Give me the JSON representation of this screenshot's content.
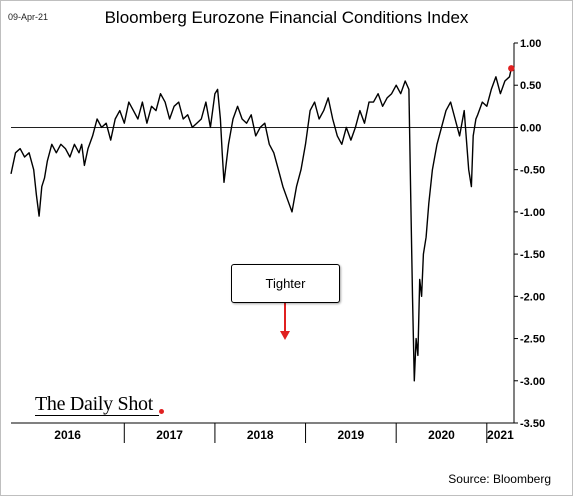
{
  "header": {
    "date": "09-Apr-21"
  },
  "footer": {
    "source": "Source: Bloomberg",
    "logo": "The Daily Shot"
  },
  "colors": {
    "line": "#000000",
    "marker": "#e02020",
    "arrow": "#e02020",
    "grid": "#808080"
  },
  "chart_data": {
    "type": "line",
    "title": "Bloomberg Eurozone Financial Conditions Index",
    "xlabel": "",
    "ylabel": "",
    "ylim": [
      -3.5,
      1.0
    ],
    "yticks": [
      1.0,
      0.5,
      0.0,
      -0.5,
      -1.0,
      -1.5,
      -2.0,
      -2.5,
      -3.0,
      -3.5
    ],
    "ytick_labels": [
      "1.00",
      "0.50",
      "0.00",
      "-0.50",
      "-1.00",
      "-1.50",
      "-2.00",
      "-2.50",
      "-3.00",
      "-3.50"
    ],
    "xlim": [
      2015.75,
      2021.3
    ],
    "x_categories": [
      "2016",
      "2017",
      "2018",
      "2019",
      "2020",
      "2021"
    ],
    "x_category_ranges": [
      [
        2015.75,
        2017.0
      ],
      [
        2017.0,
        2018.0
      ],
      [
        2018.0,
        2019.0
      ],
      [
        2019.0,
        2020.0
      ],
      [
        2020.0,
        2021.0
      ],
      [
        2021.0,
        2021.3
      ]
    ],
    "zero_line": true,
    "grid": false,
    "annotation": {
      "text": "Tighter",
      "arrow": "down"
    },
    "series": [
      {
        "x": [
          2015.75,
          2015.8,
          2015.85,
          2015.9,
          2015.95,
          2016.0,
          2016.03,
          2016.06,
          2016.09,
          2016.12,
          2016.15,
          2016.2,
          2016.25,
          2016.3,
          2016.35,
          2016.4,
          2016.45,
          2016.5,
          2016.53,
          2016.56,
          2016.6,
          2016.65,
          2016.7,
          2016.75,
          2016.8,
          2016.85,
          2016.9,
          2016.95,
          2017.0,
          2017.05,
          2017.1,
          2017.15,
          2017.2,
          2017.25,
          2017.3,
          2017.35,
          2017.4,
          2017.45,
          2017.5,
          2017.55,
          2017.6,
          2017.65,
          2017.7,
          2017.75,
          2017.8,
          2017.85,
          2017.9,
          2017.95,
          2018.0,
          2018.03,
          2018.06,
          2018.08,
          2018.1,
          2018.15,
          2018.2,
          2018.25,
          2018.3,
          2018.35,
          2018.4,
          2018.45,
          2018.5,
          2018.55,
          2018.6,
          2018.65,
          2018.7,
          2018.75,
          2018.8,
          2018.85,
          2018.9,
          2018.95,
          2019.0,
          2019.05,
          2019.1,
          2019.15,
          2019.2,
          2019.25,
          2019.3,
          2019.35,
          2019.4,
          2019.45,
          2019.5,
          2019.55,
          2019.6,
          2019.65,
          2019.7,
          2019.75,
          2019.8,
          2019.85,
          2019.9,
          2019.95,
          2020.0,
          2020.05,
          2020.1,
          2020.14,
          2020.16,
          2020.18,
          2020.2,
          2020.22,
          2020.24,
          2020.26,
          2020.28,
          2020.3,
          2020.33,
          2020.36,
          2020.4,
          2020.45,
          2020.5,
          2020.55,
          2020.6,
          2020.65,
          2020.7,
          2020.75,
          2020.8,
          2020.83,
          2020.85,
          2020.88,
          2020.9,
          2020.95,
          2021.0,
          2021.05,
          2021.1,
          2021.15,
          2021.2,
          2021.25,
          2021.27
        ],
        "values": [
          -0.55,
          -0.3,
          -0.25,
          -0.35,
          -0.3,
          -0.5,
          -0.8,
          -1.05,
          -0.7,
          -0.6,
          -0.4,
          -0.2,
          -0.3,
          -0.2,
          -0.25,
          -0.35,
          -0.2,
          -0.3,
          -0.2,
          -0.45,
          -0.25,
          -0.1,
          0.1,
          0.0,
          0.05,
          -0.15,
          0.1,
          0.2,
          0.05,
          0.3,
          0.2,
          0.1,
          0.3,
          0.05,
          0.25,
          0.2,
          0.4,
          0.3,
          0.1,
          0.25,
          0.3,
          0.1,
          0.15,
          0.0,
          0.05,
          0.1,
          0.3,
          0.0,
          0.4,
          0.45,
          0.1,
          -0.3,
          -0.65,
          -0.2,
          0.1,
          0.25,
          0.1,
          0.05,
          0.15,
          -0.1,
          0.0,
          0.05,
          -0.2,
          -0.3,
          -0.5,
          -0.7,
          -0.85,
          -1.0,
          -0.7,
          -0.5,
          -0.2,
          0.2,
          0.3,
          0.1,
          0.2,
          0.35,
          0.1,
          -0.1,
          -0.2,
          0.0,
          -0.15,
          0.0,
          0.2,
          0.05,
          0.3,
          0.3,
          0.4,
          0.25,
          0.35,
          0.4,
          0.5,
          0.4,
          0.55,
          0.45,
          -0.8,
          -2.0,
          -3.0,
          -2.5,
          -2.7,
          -1.8,
          -2.0,
          -1.5,
          -1.3,
          -0.9,
          -0.5,
          -0.2,
          0.0,
          0.2,
          0.3,
          0.1,
          -0.1,
          0.2,
          -0.5,
          -0.7,
          -0.1,
          0.1,
          0.15,
          0.3,
          0.25,
          0.45,
          0.6,
          0.4,
          0.55,
          0.6,
          0.7
        ]
      }
    ],
    "last_point_marker": true
  }
}
